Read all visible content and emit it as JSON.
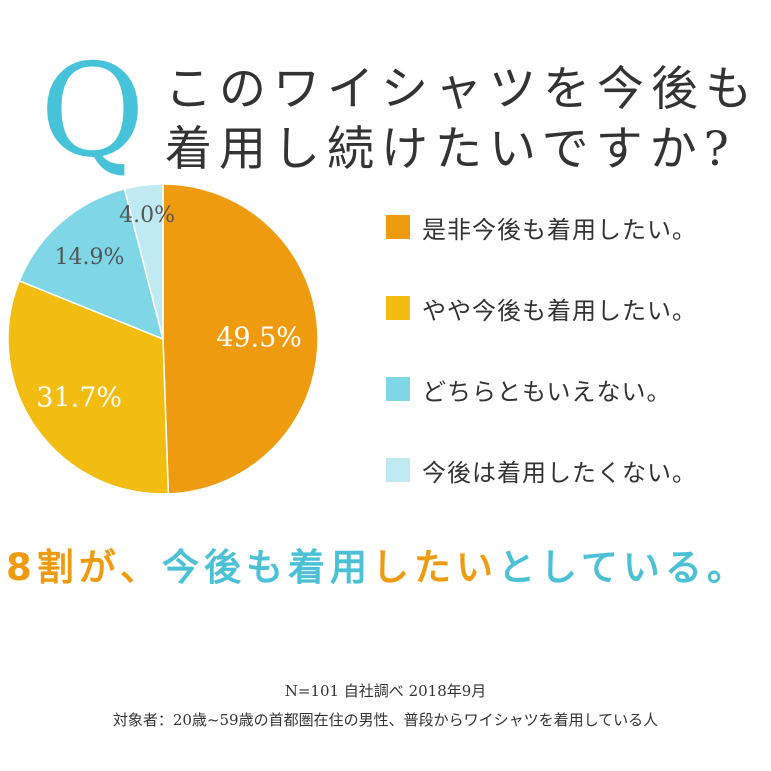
{
  "question": {
    "mark": "Q",
    "line1": "このワイシャツを今後も",
    "line2": "着用し続けたいですか?"
  },
  "chart_data": {
    "type": "pie",
    "categories": [
      "是非今後も着用したい。",
      "やや今後も着用したい。",
      "どちらともいえない。",
      "今後は着用したくない。"
    ],
    "values": [
      49.5,
      31.7,
      14.9,
      4.0
    ],
    "labels": [
      "49.5%",
      "31.7%",
      "14.9%",
      "4.0%"
    ],
    "colors": [
      "#ef9b10",
      "#f2bc10",
      "#7fd6e6",
      "#bfeaf2"
    ],
    "label_colors": [
      "#ffffff",
      "#ffffff",
      "#555555",
      "#555555"
    ],
    "legend_position": "right"
  },
  "headline": {
    "part1": "8割が、",
    "part2": "今後も着用",
    "part3": "したい",
    "part4": "としている。"
  },
  "footnote": {
    "line1": "N=101 自社調べ 2018年9月",
    "line2": "対象者：20歳~59歳の首都圏在住の男性、普段からワイシャツを着用している人"
  }
}
